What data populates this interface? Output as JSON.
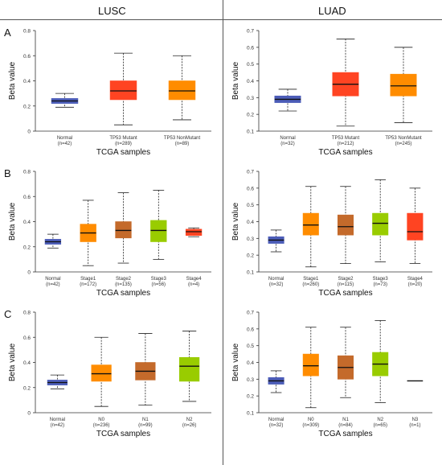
{
  "columns": [
    "LUSC",
    "LUAD"
  ],
  "row_labels": [
    "A",
    "B",
    "C"
  ],
  "chart_data": [
    {
      "type": "box",
      "ylabel": "Beta value",
      "xlabel": "TCGA samples",
      "ylim": [
        0,
        0.8
      ],
      "yticks": [
        "0",
        "0.2",
        "0.4",
        "0.6",
        "0.8"
      ],
      "ytick_values": [
        0,
        0.2,
        0.4,
        0.6,
        0.8
      ],
      "categories": [
        {
          "name": "Normal",
          "n": "(n=42)",
          "color": "#4c5db8",
          "min": 0.19,
          "q1": 0.22,
          "median": 0.24,
          "q3": 0.26,
          "max": 0.3
        },
        {
          "name": "TP53 Mutant",
          "n": "(n=289)",
          "color": "#ff4422",
          "min": 0.05,
          "q1": 0.25,
          "median": 0.32,
          "q3": 0.4,
          "max": 0.62
        },
        {
          "name": "TP53 NonMutant",
          "n": "(n=89)",
          "color": "#ff8c00",
          "min": 0.09,
          "q1": 0.25,
          "median": 0.32,
          "q3": 0.4,
          "max": 0.6
        }
      ]
    },
    {
      "type": "box",
      "ylabel": "Beta value",
      "xlabel": "TCGA samples",
      "ylim": [
        0.1,
        0.7
      ],
      "yticks": [
        "0.1",
        "0.2",
        "0.3",
        "0.4",
        "0.5",
        "0.6",
        "0.7"
      ],
      "ytick_values": [
        0.1,
        0.2,
        0.3,
        0.4,
        0.5,
        0.6,
        0.7
      ],
      "categories": [
        {
          "name": "Normal",
          "n": "(n=32)",
          "color": "#4c5db8",
          "min": 0.22,
          "q1": 0.27,
          "median": 0.29,
          "q3": 0.31,
          "max": 0.35
        },
        {
          "name": "TP53 Mutant",
          "n": "(n=212)",
          "color": "#ff4422",
          "min": 0.13,
          "q1": 0.31,
          "median": 0.38,
          "q3": 0.45,
          "max": 0.65
        },
        {
          "name": "TP53 NonMutant",
          "n": "(n=245)",
          "color": "#ff8c00",
          "min": 0.15,
          "q1": 0.31,
          "median": 0.37,
          "q3": 0.44,
          "max": 0.6
        }
      ]
    },
    {
      "type": "box",
      "ylabel": "Beta value",
      "xlabel": "TCGA samples",
      "ylim": [
        0,
        0.8
      ],
      "yticks": [
        "0",
        "0.2",
        "0.4",
        "0.6",
        "0.8"
      ],
      "ytick_values": [
        0,
        0.2,
        0.4,
        0.6,
        0.8
      ],
      "categories": [
        {
          "name": "Normal",
          "n": "(n=42)",
          "color": "#4c5db8",
          "min": 0.19,
          "q1": 0.22,
          "median": 0.24,
          "q3": 0.26,
          "max": 0.3
        },
        {
          "name": "Stage1",
          "n": "(n=172)",
          "color": "#ff8c00",
          "min": 0.05,
          "q1": 0.24,
          "median": 0.31,
          "q3": 0.38,
          "max": 0.57
        },
        {
          "name": "Stage2",
          "n": "(n=135)",
          "color": "#c46a2b",
          "min": 0.07,
          "q1": 0.27,
          "median": 0.33,
          "q3": 0.4,
          "max": 0.63
        },
        {
          "name": "Stage3",
          "n": "(n=56)",
          "color": "#99cc00",
          "min": 0.1,
          "q1": 0.24,
          "median": 0.33,
          "q3": 0.41,
          "max": 0.65
        },
        {
          "name": "Stage4",
          "n": "(n=4)",
          "color": "#ff4422",
          "min": 0.28,
          "q1": 0.29,
          "median": 0.32,
          "q3": 0.34,
          "max": 0.35
        }
      ]
    },
    {
      "type": "box",
      "ylabel": "Beta value",
      "xlabel": "TCGA samples",
      "ylim": [
        0.1,
        0.7
      ],
      "yticks": [
        "0.1",
        "0.2",
        "0.3",
        "0.4",
        "0.5",
        "0.6",
        "0.7"
      ],
      "ytick_values": [
        0.1,
        0.2,
        0.3,
        0.4,
        0.5,
        0.6,
        0.7
      ],
      "categories": [
        {
          "name": "Normal",
          "n": "(n=32)",
          "color": "#4c5db8",
          "min": 0.22,
          "q1": 0.27,
          "median": 0.29,
          "q3": 0.31,
          "max": 0.35
        },
        {
          "name": "Stage1",
          "n": "(n=260)",
          "color": "#ff8c00",
          "min": 0.13,
          "q1": 0.32,
          "median": 0.38,
          "q3": 0.45,
          "max": 0.61
        },
        {
          "name": "Stage2",
          "n": "(n=115)",
          "color": "#c46a2b",
          "min": 0.15,
          "q1": 0.32,
          "median": 0.37,
          "q3": 0.44,
          "max": 0.61
        },
        {
          "name": "Stage3",
          "n": "(n=73)",
          "color": "#99cc00",
          "min": 0.16,
          "q1": 0.32,
          "median": 0.39,
          "q3": 0.45,
          "max": 0.65
        },
        {
          "name": "Stage4",
          "n": "(n=20)",
          "color": "#ff4422",
          "min": 0.15,
          "q1": 0.29,
          "median": 0.34,
          "q3": 0.45,
          "max": 0.6
        }
      ]
    },
    {
      "type": "box",
      "ylabel": "Beta value",
      "xlabel": "TCGA samples",
      "ylim": [
        0,
        0.8
      ],
      "yticks": [
        "0",
        "0.2",
        "0.4",
        "0.6",
        "0.8"
      ],
      "ytick_values": [
        0,
        0.2,
        0.4,
        0.6,
        0.8
      ],
      "categories": [
        {
          "name": "Normal",
          "n": "(n=42)",
          "color": "#4c5db8",
          "min": 0.19,
          "q1": 0.22,
          "median": 0.24,
          "q3": 0.26,
          "max": 0.3
        },
        {
          "name": "N0",
          "n": "(n=236)",
          "color": "#ff8c00",
          "min": 0.05,
          "q1": 0.25,
          "median": 0.31,
          "q3": 0.38,
          "max": 0.6
        },
        {
          "name": "N1",
          "n": "(n=99)",
          "color": "#c46a2b",
          "min": 0.06,
          "q1": 0.26,
          "median": 0.33,
          "q3": 0.4,
          "max": 0.63
        },
        {
          "name": "N2",
          "n": "(n=26)",
          "color": "#99cc00",
          "min": 0.09,
          "q1": 0.25,
          "median": 0.37,
          "q3": 0.44,
          "max": 0.65
        }
      ]
    },
    {
      "type": "box",
      "ylabel": "Beta value",
      "xlabel": "TCGA samples",
      "ylim": [
        0.1,
        0.7
      ],
      "yticks": [
        "0.1",
        "0.2",
        "0.3",
        "0.4",
        "0.5",
        "0.6",
        "0.7"
      ],
      "ytick_values": [
        0.1,
        0.2,
        0.3,
        0.4,
        0.5,
        0.6,
        0.7
      ],
      "categories": [
        {
          "name": "Normal",
          "n": "(n=32)",
          "color": "#4c5db8",
          "min": 0.22,
          "q1": 0.27,
          "median": 0.29,
          "q3": 0.31,
          "max": 0.35
        },
        {
          "name": "N0",
          "n": "(n=309)",
          "color": "#ff8c00",
          "min": 0.13,
          "q1": 0.32,
          "median": 0.38,
          "q3": 0.45,
          "max": 0.61
        },
        {
          "name": "N1",
          "n": "(n=84)",
          "color": "#c46a2b",
          "min": 0.19,
          "q1": 0.3,
          "median": 0.37,
          "q3": 0.44,
          "max": 0.61
        },
        {
          "name": "N2",
          "n": "(n=65)",
          "color": "#99cc00",
          "min": 0.16,
          "q1": 0.32,
          "median": 0.39,
          "q3": 0.46,
          "max": 0.65
        },
        {
          "name": "N3",
          "n": "(n=1)",
          "color": "#555555",
          "min": 0.29,
          "q1": 0.29,
          "median": 0.29,
          "q3": 0.29,
          "max": 0.29
        }
      ]
    }
  ]
}
